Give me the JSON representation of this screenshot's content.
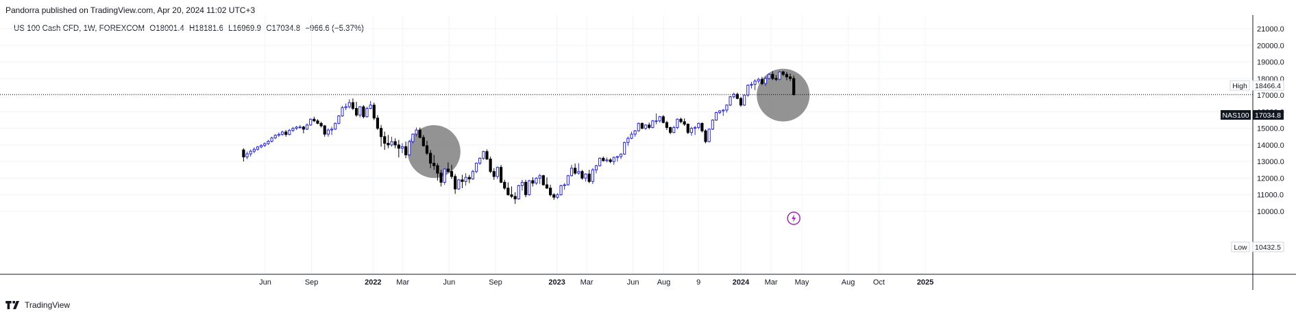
{
  "header": {
    "published_text": "Pandorra published on TradingView.com, Apr 20, 2024 11:02 UTC+3"
  },
  "legend": {
    "symbol": "US 100 Cash CFD, 1W, FOREXCOM",
    "open": "O18001.4",
    "high": "H18181.6",
    "low": "L16969.9",
    "close": "C17034.8",
    "change": "−966.6 (−5.37%)"
  },
  "footer": {
    "brand": "TradingView"
  },
  "tags": {
    "high_label": "High",
    "high_value": "18466.4",
    "symbol_label": "NAS100",
    "last_value": "17034.8",
    "low_label": "Low",
    "low_value": "10432.5"
  },
  "colors": {
    "up_body": "#ffffff",
    "up_border": "#2727c9",
    "down_body": "#000000",
    "down_border": "#000000",
    "circle": "#808080",
    "grid": "#f0f3fa",
    "event": "#9c27b0"
  },
  "chart_data": {
    "type": "candlestick",
    "timeframe": "1W",
    "ylim": [
      9700,
      21600
    ],
    "y_ticks": [
      "21000.0",
      "20000.0",
      "19000.0",
      "18000.0",
      "17000.0",
      "16000.0",
      "15000.0",
      "14000.0",
      "13000.0",
      "12000.0",
      "11000.0",
      "10000.0"
    ],
    "x_ticks": [
      {
        "label": "Jun",
        "date": "2021-06-01"
      },
      {
        "label": "Sep",
        "date": "2021-09-01"
      },
      {
        "label": "2022",
        "date": "2022-01-01"
      },
      {
        "label": "Mar",
        "date": "2022-03-01"
      },
      {
        "label": "Jun",
        "date": "2022-06-01"
      },
      {
        "label": "Sep",
        "date": "2022-09-01"
      },
      {
        "label": "2023",
        "date": "2023-01-01"
      },
      {
        "label": "Mar",
        "date": "2023-03-01"
      },
      {
        "label": "Jun",
        "date": "2023-06-01"
      },
      {
        "label": "Aug",
        "date": "2023-08-01"
      },
      {
        "label": "9",
        "date": "2023-10-09"
      },
      {
        "label": "2024",
        "date": "2024-01-01"
      },
      {
        "label": "Mar",
        "date": "2024-03-01"
      },
      {
        "label": "May",
        "date": "2024-05-01"
      },
      {
        "label": "Aug",
        "date": "2024-08-01"
      },
      {
        "label": "Oct",
        "date": "2024-10-01"
      },
      {
        "label": "2025",
        "date": "2025-01-01"
      }
    ],
    "candles": [
      [
        "2021-04-19",
        13700,
        13800,
        13000,
        13280
      ],
      [
        "2021-04-26",
        13280,
        13600,
        13150,
        13460
      ],
      [
        "2021-05-03",
        13460,
        13720,
        13300,
        13620
      ],
      [
        "2021-05-10",
        13620,
        13850,
        13500,
        13740
      ],
      [
        "2021-05-17",
        13740,
        13950,
        13650,
        13880
      ],
      [
        "2021-05-24",
        13880,
        14050,
        13800,
        13970
      ],
      [
        "2021-05-31",
        13970,
        14150,
        13880,
        14080
      ],
      [
        "2021-06-07",
        14080,
        14300,
        14000,
        14220
      ],
      [
        "2021-06-14",
        14220,
        14500,
        14150,
        14420
      ],
      [
        "2021-06-21",
        14420,
        14650,
        14350,
        14580
      ],
      [
        "2021-06-28",
        14580,
        14750,
        14480,
        14640
      ],
      [
        "2021-07-05",
        14640,
        14860,
        14550,
        14780
      ],
      [
        "2021-07-12",
        14780,
        14900,
        14500,
        14630
      ],
      [
        "2021-07-19",
        14630,
        14960,
        14580,
        14880
      ],
      [
        "2021-07-26",
        14880,
        15080,
        14780,
        15000
      ],
      [
        "2021-08-02",
        15000,
        15150,
        14900,
        15070
      ],
      [
        "2021-08-09",
        15070,
        15200,
        14980,
        15080
      ],
      [
        "2021-08-16",
        15080,
        15150,
        14700,
        14950
      ],
      [
        "2021-08-23",
        14950,
        15300,
        14900,
        15200
      ],
      [
        "2021-08-30",
        15200,
        15600,
        15150,
        15550
      ],
      [
        "2021-09-06",
        15550,
        15700,
        15380,
        15450
      ],
      [
        "2021-09-13",
        15450,
        15550,
        15250,
        15300
      ],
      [
        "2021-09-20",
        15300,
        15400,
        15050,
        15150
      ],
      [
        "2021-09-27",
        15150,
        15200,
        14500,
        14650
      ],
      [
        "2021-10-04",
        14650,
        15000,
        14500,
        14900
      ],
      [
        "2021-10-11",
        14900,
        15100,
        14600,
        14950
      ],
      [
        "2021-10-18",
        14950,
        15350,
        14900,
        15300
      ],
      [
        "2021-10-25",
        15300,
        15800,
        15250,
        15750
      ],
      [
        "2021-11-01",
        15750,
        16350,
        15700,
        16250
      ],
      [
        "2021-11-08",
        16250,
        16500,
        16100,
        16300
      ],
      [
        "2021-11-15",
        16300,
        16750,
        16200,
        16550
      ],
      [
        "2021-11-22",
        16550,
        16800,
        16100,
        16200
      ],
      [
        "2021-11-29",
        16200,
        16600,
        15700,
        15800
      ],
      [
        "2021-12-06",
        15800,
        16350,
        15650,
        16300
      ],
      [
        "2021-12-13",
        16300,
        16400,
        15600,
        15700
      ],
      [
        "2021-12-20",
        15700,
        16300,
        15650,
        16200
      ],
      [
        "2021-12-27",
        16200,
        16650,
        16150,
        16400
      ],
      [
        "2022-01-03",
        16400,
        16550,
        15500,
        15620
      ],
      [
        "2022-01-10",
        15620,
        15800,
        14900,
        15000
      ],
      [
        "2022-01-17",
        15000,
        15200,
        13900,
        14500
      ],
      [
        "2022-01-24",
        14500,
        14800,
        13700,
        14100
      ],
      [
        "2022-01-31",
        14100,
        14600,
        13800,
        14000
      ],
      [
        "2022-02-07",
        14000,
        14500,
        13900,
        14200
      ],
      [
        "2022-02-14",
        14200,
        14400,
        13800,
        14000
      ],
      [
        "2022-02-21",
        14000,
        14300,
        13250,
        13800
      ],
      [
        "2022-02-28",
        13800,
        14100,
        13500,
        13900
      ],
      [
        "2022-03-07",
        13900,
        14200,
        13200,
        13400
      ],
      [
        "2022-03-14",
        13400,
        14300,
        13350,
        14200
      ],
      [
        "2022-03-21",
        14200,
        14700,
        14100,
        14650
      ],
      [
        "2022-03-28",
        14650,
        15050,
        14500,
        14900
      ],
      [
        "2022-04-04",
        14900,
        15050,
        14400,
        14450
      ],
      [
        "2022-04-11",
        14450,
        14600,
        13900,
        13950
      ],
      [
        "2022-04-18",
        13950,
        14250,
        13400,
        13500
      ],
      [
        "2022-04-25",
        13500,
        13700,
        12600,
        12900
      ],
      [
        "2022-05-02",
        12900,
        13400,
        12500,
        12750
      ],
      [
        "2022-05-09",
        12750,
        12900,
        11850,
        12300
      ],
      [
        "2022-05-16",
        12300,
        12500,
        11500,
        11750
      ],
      [
        "2022-05-23",
        11750,
        12600,
        11600,
        12550
      ],
      [
        "2022-05-30",
        12550,
        12950,
        12350,
        12400
      ],
      [
        "2022-06-06",
        12400,
        12800,
        11950,
        12100
      ],
      [
        "2022-06-13",
        12100,
        12250,
        11050,
        11350
      ],
      [
        "2022-06-20",
        11350,
        11950,
        11300,
        11900
      ],
      [
        "2022-06-27",
        11900,
        12200,
        11400,
        11800
      ],
      [
        "2022-07-04",
        11800,
        12300,
        11550,
        12050
      ],
      [
        "2022-07-11",
        12050,
        12200,
        11700,
        11950
      ],
      [
        "2022-07-18",
        11950,
        12500,
        11900,
        12400
      ],
      [
        "2022-07-25",
        12400,
        12950,
        12300,
        12900
      ],
      [
        "2022-08-01",
        12900,
        13250,
        12800,
        13200
      ],
      [
        "2022-08-08",
        13200,
        13650,
        13100,
        13600
      ],
      [
        "2022-08-15",
        13600,
        13730,
        13100,
        13150
      ],
      [
        "2022-08-22",
        13150,
        13300,
        12300,
        12400
      ],
      [
        "2022-08-29",
        12400,
        12600,
        11900,
        12100
      ],
      [
        "2022-09-05",
        12100,
        12700,
        11950,
        12650
      ],
      [
        "2022-09-12",
        12650,
        12800,
        11700,
        11750
      ],
      [
        "2022-09-19",
        11750,
        11900,
        11300,
        11400
      ],
      [
        "2022-09-26",
        11400,
        11750,
        10950,
        11000
      ],
      [
        "2022-10-03",
        11000,
        11500,
        10800,
        10900
      ],
      [
        "2022-10-10",
        10900,
        11150,
        10450,
        10750
      ],
      [
        "2022-10-17",
        10750,
        11600,
        10700,
        11550
      ],
      [
        "2022-10-24",
        11550,
        11900,
        11250,
        11750
      ],
      [
        "2022-10-31",
        11750,
        11900,
        10850,
        11000
      ],
      [
        "2022-11-07",
        11000,
        11900,
        10950,
        11850
      ],
      [
        "2022-11-14",
        11850,
        12050,
        11500,
        11700
      ],
      [
        "2022-11-21",
        11700,
        12050,
        11600,
        12000
      ],
      [
        "2022-11-28",
        12000,
        12250,
        11650,
        12150
      ],
      [
        "2022-12-05",
        12150,
        12200,
        11550,
        11600
      ],
      [
        "2022-12-12",
        11600,
        12050,
        11350,
        11400
      ],
      [
        "2022-12-19",
        11400,
        11600,
        10900,
        11000
      ],
      [
        "2022-12-26",
        11000,
        11100,
        10700,
        10850
      ],
      [
        "2023-01-02",
        10850,
        11100,
        10750,
        11000
      ],
      [
        "2023-01-09",
        11000,
        11600,
        10950,
        11550
      ],
      [
        "2023-01-16",
        11550,
        11700,
        11300,
        11600
      ],
      [
        "2023-01-23",
        11600,
        12200,
        11550,
        12150
      ],
      [
        "2023-01-30",
        12150,
        12800,
        12100,
        12600
      ],
      [
        "2023-02-06",
        12600,
        12880,
        12200,
        12300
      ],
      [
        "2023-02-13",
        12300,
        12900,
        12200,
        12400
      ],
      [
        "2023-02-20",
        12400,
        12500,
        11900,
        12000
      ],
      [
        "2023-02-27",
        12000,
        12300,
        11800,
        12250
      ],
      [
        "2023-03-06",
        12250,
        12500,
        11700,
        11800
      ],
      [
        "2023-03-13",
        11800,
        12600,
        11650,
        12500
      ],
      [
        "2023-03-20",
        12500,
        12800,
        12300,
        12750
      ],
      [
        "2023-03-27",
        12750,
        13250,
        12700,
        13200
      ],
      [
        "2023-04-03",
        13200,
        13300,
        13000,
        13050
      ],
      [
        "2023-04-10",
        13050,
        13250,
        12950,
        13100
      ],
      [
        "2023-04-17",
        13100,
        13200,
        12900,
        13000
      ],
      [
        "2023-04-24",
        13000,
        13300,
        12800,
        13250
      ],
      [
        "2023-05-01",
        13250,
        13350,
        13000,
        13300
      ],
      [
        "2023-05-08",
        13300,
        13500,
        13150,
        13450
      ],
      [
        "2023-05-15",
        13450,
        14200,
        13400,
        14150
      ],
      [
        "2023-05-22",
        14150,
        14500,
        13950,
        14400
      ],
      [
        "2023-05-29",
        14400,
        14800,
        14350,
        14650
      ],
      [
        "2023-06-05",
        14650,
        14900,
        14500,
        14850
      ],
      [
        "2023-06-12",
        14850,
        15350,
        14800,
        15300
      ],
      [
        "2023-06-19",
        15300,
        15350,
        14950,
        15000
      ],
      [
        "2023-06-26",
        15000,
        15250,
        14900,
        15200
      ],
      [
        "2023-07-03",
        15200,
        15350,
        14950,
        15050
      ],
      [
        "2023-07-10",
        15050,
        15500,
        15000,
        15450
      ],
      [
        "2023-07-17",
        15450,
        15900,
        15250,
        15450
      ],
      [
        "2023-07-24",
        15450,
        15750,
        15350,
        15700
      ],
      [
        "2023-07-31",
        15700,
        15800,
        15300,
        15350
      ],
      [
        "2023-08-07",
        15350,
        15450,
        14900,
        15050
      ],
      [
        "2023-08-14",
        15050,
        15100,
        14650,
        14750
      ],
      [
        "2023-08-21",
        14750,
        15150,
        14700,
        15050
      ],
      [
        "2023-08-28",
        15050,
        15600,
        14950,
        15550
      ],
      [
        "2023-09-04",
        15550,
        15650,
        15300,
        15400
      ],
      [
        "2023-09-11",
        15400,
        15600,
        15150,
        15250
      ],
      [
        "2023-09-18",
        15250,
        15300,
        14650,
        14750
      ],
      [
        "2023-09-25",
        14750,
        15100,
        14550,
        15000
      ],
      [
        "2023-10-02",
        15000,
        15150,
        14600,
        15050
      ],
      [
        "2023-10-09",
        15050,
        15350,
        14950,
        15300
      ],
      [
        "2023-10-16",
        15300,
        15350,
        14750,
        14850
      ],
      [
        "2023-10-23",
        14850,
        14950,
        14100,
        14200
      ],
      [
        "2023-10-30",
        14200,
        15000,
        14150,
        14950
      ],
      [
        "2023-11-06",
        14950,
        15550,
        14900,
        15500
      ],
      [
        "2023-11-13",
        15500,
        16000,
        15450,
        15950
      ],
      [
        "2023-11-20",
        15950,
        16100,
        15850,
        16050
      ],
      [
        "2023-11-27",
        16050,
        16150,
        15750,
        16100
      ],
      [
        "2023-12-04",
        16100,
        16450,
        15950,
        16400
      ],
      [
        "2023-12-11",
        16400,
        16950,
        16350,
        16900
      ],
      [
        "2023-12-18",
        16900,
        17150,
        16800,
        17050
      ],
      [
        "2023-12-25",
        17050,
        17150,
        16750,
        16800
      ],
      [
        "2024-01-01",
        16800,
        16900,
        16300,
        16400
      ],
      [
        "2024-01-08",
        16400,
        17050,
        16350,
        17000
      ],
      [
        "2024-01-15",
        17000,
        17650,
        16900,
        17600
      ],
      [
        "2024-01-22",
        17600,
        17800,
        17400,
        17650
      ],
      [
        "2024-01-29",
        17650,
        17950,
        17300,
        17850
      ],
      [
        "2024-02-05",
        17850,
        18050,
        17700,
        17950
      ],
      [
        "2024-02-12",
        17950,
        18100,
        17600,
        17700
      ],
      [
        "2024-02-19",
        17700,
        18100,
        17550,
        18000
      ],
      [
        "2024-02-26",
        18000,
        18300,
        17950,
        18250
      ],
      [
        "2024-03-04",
        18250,
        18450,
        17900,
        18000
      ],
      [
        "2024-03-11",
        18000,
        18200,
        17850,
        17950
      ],
      [
        "2024-03-18",
        17950,
        18450,
        17900,
        18400
      ],
      [
        "2024-03-25",
        18400,
        18466.4,
        18150,
        18250
      ],
      [
        "2024-04-01",
        18250,
        18400,
        17900,
        18100
      ],
      [
        "2024-04-08",
        18100,
        18300,
        17850,
        18000
      ],
      [
        "2024-04-15",
        18001.4,
        18181.6,
        16969.9,
        17034.8
      ]
    ],
    "highlight_circles": [
      {
        "center_date": "2022-05-02",
        "center_price": 13600,
        "radius_weeks": 7.5
      },
      {
        "center_date": "2024-03-25",
        "center_price": 17000,
        "radius_weeks": 7.5
      }
    ],
    "event_marker": {
      "date": "2024-04-15",
      "price": 10200,
      "icon": "lightning-icon"
    }
  }
}
